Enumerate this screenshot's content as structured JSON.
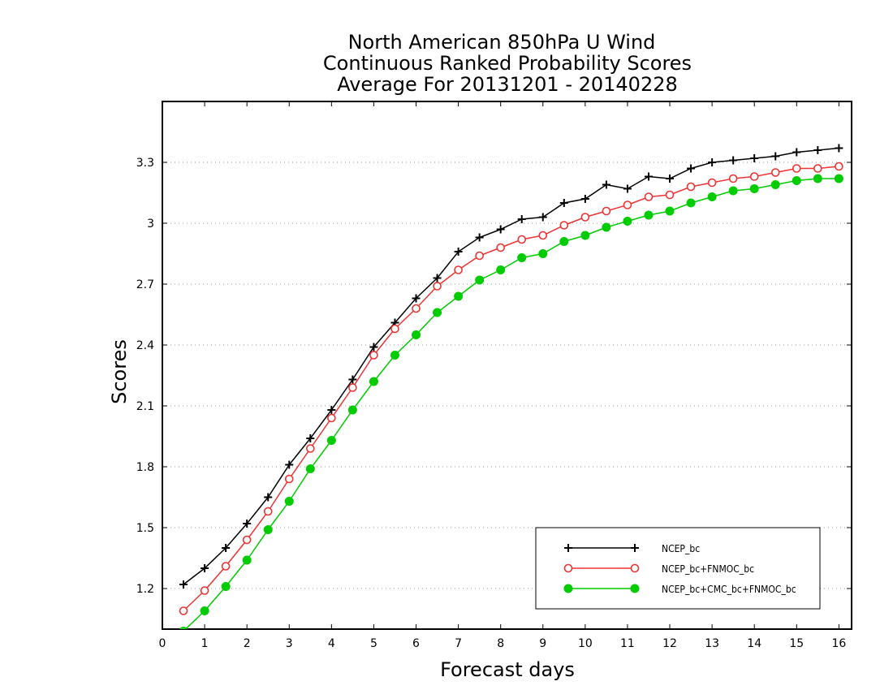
{
  "chart_data": {
    "type": "line",
    "title_lines": [
      "North American 850hPa U Wind",
      "Continuous Ranked Probability Scores",
      "Average For 20131201 - 20140228"
    ],
    "xlabel": "Forecast days",
    "ylabel": "Scores",
    "xlim": [
      0,
      16.3
    ],
    "ylim": [
      1.0,
      3.6
    ],
    "xticks": [
      0,
      1,
      2,
      3,
      4,
      5,
      6,
      7,
      8,
      9,
      10,
      11,
      12,
      13,
      14,
      15,
      16
    ],
    "yticks": [
      1.2,
      1.5,
      1.8,
      2.1,
      2.4,
      2.7,
      3.0,
      3.3
    ],
    "ytick_labels": [
      "1.2",
      "1.5",
      "1.8",
      "2.1",
      "2.4",
      "2.7",
      "3",
      "3.3"
    ],
    "grid": "horizontal dotted",
    "legend_placement": "bottom-right",
    "x": [
      0.5,
      1.0,
      1.5,
      2.0,
      2.5,
      3.0,
      3.5,
      4.0,
      4.5,
      5.0,
      5.5,
      6.0,
      6.5,
      7.0,
      7.5,
      8.0,
      8.5,
      9.0,
      9.5,
      10.0,
      10.5,
      11.0,
      11.5,
      12.0,
      12.5,
      13.0,
      13.5,
      14.0,
      14.5,
      15.0,
      15.5,
      16.0
    ],
    "series": [
      {
        "name": "NCEP_bc",
        "color": "#000000",
        "marker": "plus",
        "values": [
          1.22,
          1.3,
          1.4,
          1.52,
          1.65,
          1.81,
          1.94,
          2.08,
          2.23,
          2.39,
          2.51,
          2.63,
          2.73,
          2.86,
          2.93,
          2.97,
          3.02,
          3.03,
          3.1,
          3.12,
          3.19,
          3.17,
          3.23,
          3.22,
          3.27,
          3.3,
          3.31,
          3.32,
          3.33,
          3.35,
          3.36,
          3.37
        ]
      },
      {
        "name": "NCEP_bc+FNMOC_bc",
        "color": "#ee3333",
        "marker": "open-circle",
        "values": [
          1.09,
          1.19,
          1.31,
          1.44,
          1.58,
          1.74,
          1.89,
          2.04,
          2.19,
          2.35,
          2.48,
          2.58,
          2.69,
          2.77,
          2.84,
          2.88,
          2.92,
          2.94,
          2.99,
          3.03,
          3.06,
          3.09,
          3.13,
          3.14,
          3.18,
          3.2,
          3.22,
          3.23,
          3.25,
          3.27,
          3.27,
          3.28
        ]
      },
      {
        "name": "NCEP_bc+CMC_bc+FNMOC_bc",
        "color": "#00cc00",
        "marker": "filled-circle",
        "values": [
          0.99,
          1.09,
          1.21,
          1.34,
          1.49,
          1.63,
          1.79,
          1.93,
          2.08,
          2.22,
          2.35,
          2.45,
          2.56,
          2.64,
          2.72,
          2.77,
          2.83,
          2.85,
          2.91,
          2.94,
          2.98,
          3.01,
          3.04,
          3.06,
          3.1,
          3.13,
          3.16,
          3.17,
          3.19,
          3.21,
          3.22,
          3.22
        ]
      }
    ]
  }
}
